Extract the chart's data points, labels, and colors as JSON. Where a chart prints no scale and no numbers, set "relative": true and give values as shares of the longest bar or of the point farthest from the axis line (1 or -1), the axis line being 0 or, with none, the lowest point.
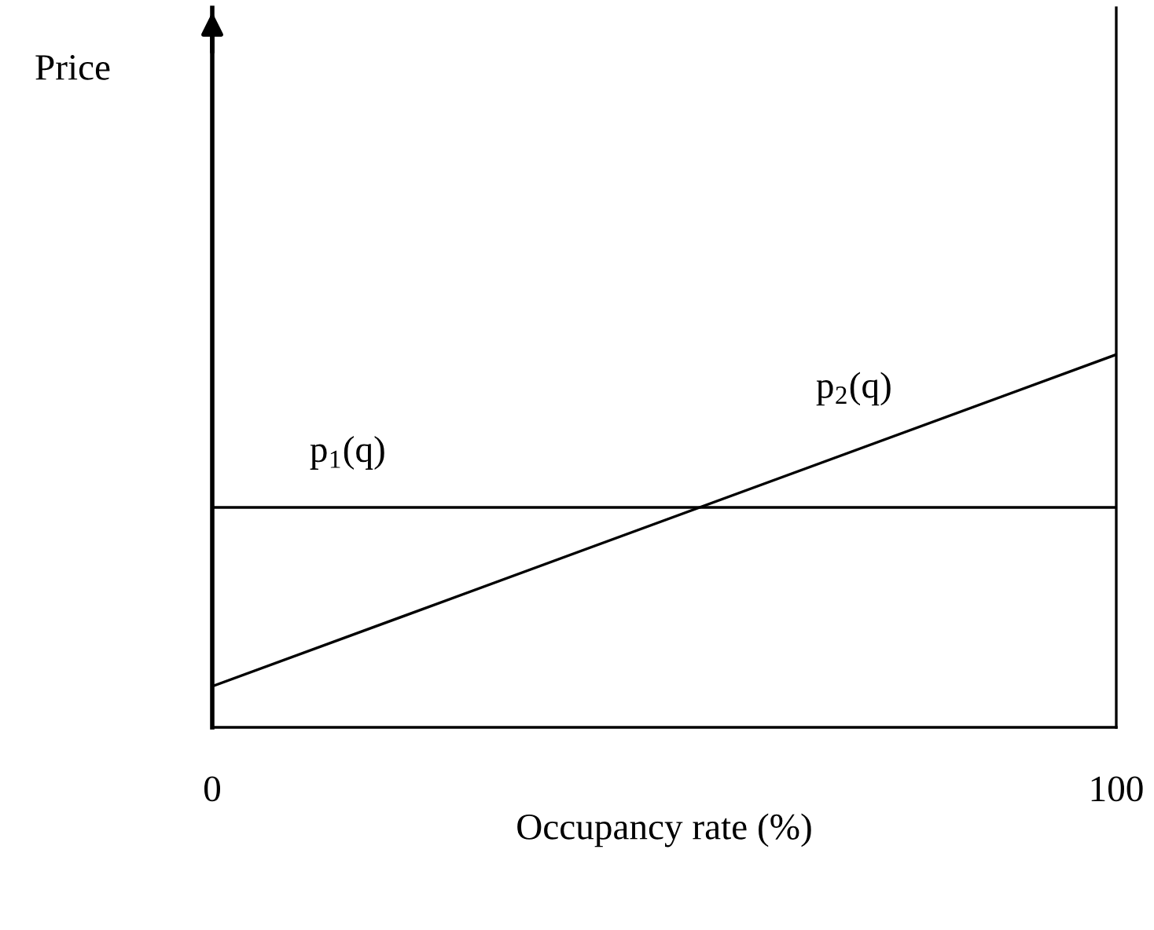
{
  "chart_data": {
    "type": "line",
    "relative": true,
    "xlabel": "Occupancy rate (%)",
    "annotations": [
      "Price"
    ],
    "x": [
      0,
      100
    ],
    "xlim": [
      0,
      100
    ],
    "xticks": [
      0,
      100
    ],
    "legend": false,
    "marker": "none",
    "line_style": "solid",
    "series": [
      {
        "name": "p$_{1}$(q)",
        "color": "#000000",
        "values": [
          0.59,
          0.59
        ]
      },
      {
        "name": "p$_{2}$(q)",
        "color": "#000000",
        "values": [
          0.11,
          1
        ]
      }
    ]
  }
}
